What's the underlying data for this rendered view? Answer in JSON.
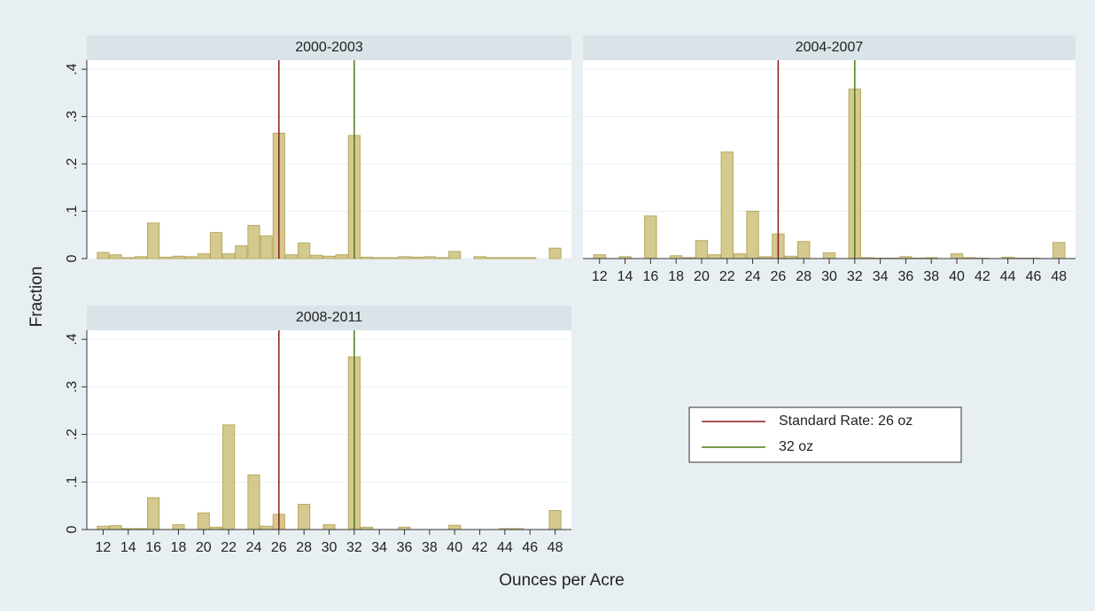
{
  "chart_data": [
    {
      "type": "histogram",
      "title": "2000-2003",
      "bins": [
        11.5,
        12.5,
        13.5,
        14.5,
        15.5,
        16.5,
        17.5,
        18.5,
        19.5,
        20.5,
        21.5,
        22.5,
        23.5,
        24.5,
        25.5,
        26.5,
        27.5,
        28.5,
        29.5,
        30.5,
        31.5,
        32.5,
        33.5,
        34.5,
        35.5,
        36.5,
        37.5,
        38.5,
        39.5,
        40.5,
        41.5,
        42.5,
        43.5,
        44.5,
        45.5,
        46.5,
        47.5,
        48.5
      ],
      "values": [
        0.013,
        0.008,
        0.002,
        0.004,
        0.075,
        0.003,
        0.005,
        0.004,
        0.01,
        0.055,
        0.01,
        0.027,
        0.07,
        0.048,
        0.265,
        0.008,
        0.033,
        0.007,
        0.005,
        0.008,
        0.26,
        0.003,
        0.002,
        0.002,
        0.004,
        0.003,
        0.004,
        0.002,
        0.015,
        0,
        0.004,
        0.002,
        0.002,
        0.002,
        0.002,
        0,
        0.022
      ],
      "color": "#d4c98f",
      "xlim": [
        10.7,
        49.3
      ],
      "ylim": [
        0,
        0.419
      ],
      "yticks": [
        0,
        {
          "value": 0.1,
          "label": ".1"
        },
        {
          "value": 0.2,
          "label": ".2"
        },
        {
          "value": 0.3,
          "label": ".3"
        },
        {
          "value": 0.4,
          "label": ".4"
        }
      ],
      "grid": true
    },
    {
      "type": "histogram",
      "title": "2004-2007",
      "bins": [
        11.5,
        12.5,
        13.5,
        14.5,
        15.5,
        16.5,
        17.5,
        18.5,
        19.5,
        20.5,
        21.5,
        22.5,
        23.5,
        24.5,
        25.5,
        26.5,
        27.5,
        28.5,
        29.5,
        30.5,
        31.5,
        32.5,
        33.5,
        34.5,
        35.5,
        36.5,
        37.5,
        38.5,
        39.5,
        40.5,
        41.5,
        42.5,
        43.5,
        44.5,
        45.5,
        46.5,
        47.5,
        48.5
      ],
      "values": [
        0.008,
        0,
        0.004,
        0,
        0.09,
        0,
        0.006,
        0.002,
        0.038,
        0.008,
        0.225,
        0.01,
        0.1,
        0.004,
        0.052,
        0.005,
        0.036,
        0,
        0.012,
        0,
        0.358,
        0.002,
        0.001,
        0.001,
        0.004,
        0.001,
        0.002,
        0,
        0.01,
        0.002,
        0.001,
        0,
        0.003,
        0.001,
        0.001,
        0,
        0.034
      ],
      "color": "#d4c98f",
      "xlim": [
        10.7,
        49.3
      ],
      "ylim": [
        0,
        0.419
      ],
      "xticks": [
        12,
        14,
        16,
        18,
        20,
        22,
        24,
        26,
        28,
        30,
        32,
        34,
        36,
        38,
        40,
        42,
        44,
        46,
        48
      ],
      "yticks": [
        0,
        0.1,
        0.2,
        0.3,
        0.4
      ],
      "grid": true
    },
    {
      "type": "histogram",
      "title": "2008-2011",
      "bins": [
        11.5,
        12.5,
        13.5,
        14.5,
        15.5,
        16.5,
        17.5,
        18.5,
        19.5,
        20.5,
        21.5,
        22.5,
        23.5,
        24.5,
        25.5,
        26.5,
        27.5,
        28.5,
        29.5,
        30.5,
        31.5,
        32.5,
        33.5,
        34.5,
        35.5,
        36.5,
        37.5,
        38.5,
        39.5,
        40.5,
        41.5,
        42.5,
        43.5,
        44.5,
        45.5,
        46.5,
        47.5,
        48.5
      ],
      "values": [
        0.007,
        0.008,
        0.002,
        0.002,
        0.067,
        0,
        0.01,
        0,
        0.035,
        0.005,
        0.22,
        0,
        0.115,
        0.007,
        0.032,
        0,
        0.053,
        0,
        0.01,
        0,
        0.363,
        0.005,
        0,
        0,
        0.005,
        0,
        0,
        0,
        0.009,
        0,
        0,
        0,
        0.002,
        0.002,
        0,
        0,
        0.04
      ],
      "color": "#d4c98f",
      "xlim": [
        10.7,
        49.3
      ],
      "ylim": [
        0,
        0.419
      ],
      "xticks": [
        12,
        14,
        16,
        18,
        20,
        22,
        24,
        26,
        28,
        30,
        32,
        34,
        36,
        38,
        40,
        42,
        44,
        46,
        48
      ],
      "yticks": [
        0,
        {
          "value": 0.1,
          "label": ".1"
        },
        {
          "value": 0.2,
          "label": ".2"
        },
        {
          "value": 0.3,
          "label": ".3"
        },
        {
          "value": 0.4,
          "label": ".4"
        }
      ],
      "grid": true
    }
  ],
  "y_label": "Fraction",
  "x_label": "Ounces per Acre",
  "reference_lines": [
    {
      "name": "Standard Rate: 26 oz",
      "value": 26,
      "color": "#8b1a1a"
    },
    {
      "name": "32 oz",
      "value": 32,
      "color": "#4c7a1a"
    }
  ]
}
